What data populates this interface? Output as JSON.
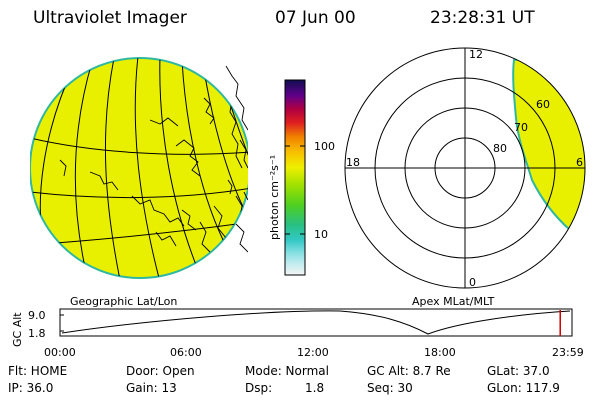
{
  "header": {
    "title": "Ultraviolet Imager",
    "date": "07 Jun 00",
    "time": "23:28:31 UT"
  },
  "panels": {
    "left_caption": "Geographic Lat/Lon",
    "right_caption": "Apex MLat/MLT"
  },
  "colorbar": {
    "unit_label": "photon cm⁻²s⁻¹",
    "ticks": [
      "100",
      "10"
    ],
    "scale": "log"
  },
  "polar_plot": {
    "mlt_labels": [
      "12",
      "18",
      "6",
      "0"
    ],
    "mlat_labels": [
      "60",
      "70",
      "80"
    ]
  },
  "altitude_plot": {
    "ylabel": "GC Alt",
    "yticks": [
      "9.0",
      "1.8"
    ],
    "xticks": [
      "00:00",
      "06:00",
      "12:00",
      "18:00",
      "23:59"
    ],
    "current_time_fraction": 0.977
  },
  "status": {
    "filter": "Flt: HOME",
    "door": "Door: Open",
    "mode": "Mode: Normal",
    "gc_alt": "GC Alt: 8.7 Re",
    "glat": "GLat: 37.0",
    "ip": "IP: 36.0",
    "gain": "Gain: 13",
    "dsp_label": "Dsp:",
    "dsp_value": "1.8",
    "seq": "Seq: 30",
    "glon": "GLon: 117.9"
  },
  "colors": {
    "fill": "#e8f000",
    "rim": "#2fb8a0",
    "marker": "#cc0000"
  }
}
